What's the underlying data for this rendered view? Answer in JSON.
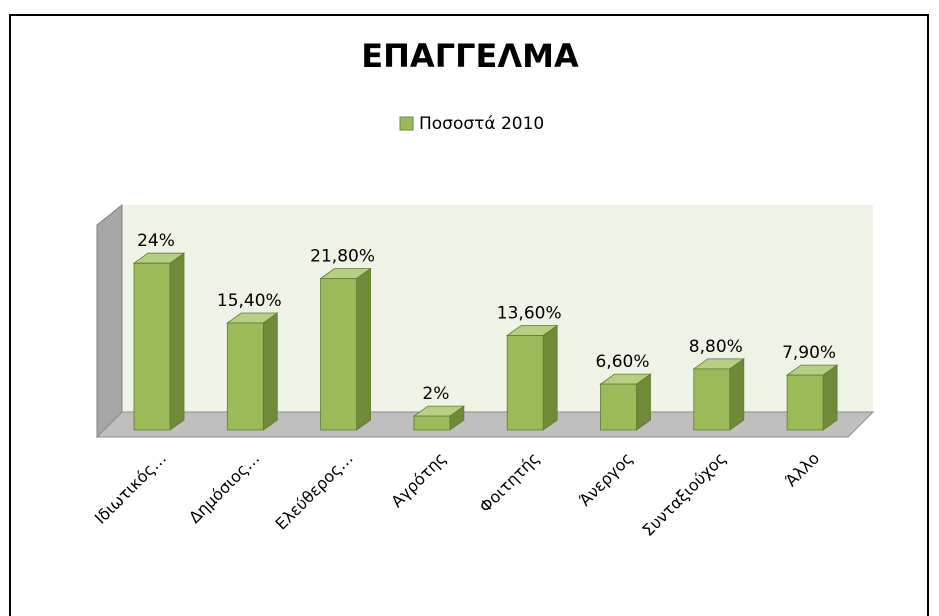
{
  "chart_data": {
    "type": "bar3d",
    "title": "ΕΠΑΓΓΕΛΜΑ",
    "categories": [
      "Ιδιωτικός…",
      "Δημόσιος…",
      "Ελεύθερος…",
      "Αγρότης",
      "Φοιτητής",
      "Άνεργος",
      "Συνταξιούχος",
      "Άλλο"
    ],
    "series": [
      {
        "name": "Ποσοστά 2010",
        "color": "#9bbb59",
        "values": [
          24,
          15.4,
          21.8,
          2,
          13.6,
          6.6,
          8.8,
          7.9
        ],
        "value_labels": [
          "24%",
          "15,40%",
          "21,80%",
          "2%",
          "13,60%",
          "6,60%",
          "8,80%",
          "7,90%"
        ]
      }
    ],
    "legend": "top"
  }
}
